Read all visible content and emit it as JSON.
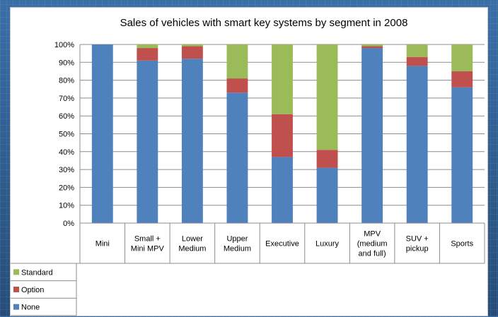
{
  "chart_data": {
    "type": "bar",
    "stacked": true,
    "title": "Sales of vehicles with smart key systems by segment in 2008",
    "categories": [
      [
        "Mini"
      ],
      [
        "Small +",
        "Mini MPV"
      ],
      [
        "Lower",
        "Medium"
      ],
      [
        "Upper",
        "Medium"
      ],
      [
        "Executive"
      ],
      [
        "Luxury"
      ],
      [
        "MPV",
        "(medium",
        "and full)"
      ],
      [
        "SUV +",
        "pickup"
      ],
      [
        "Sports"
      ]
    ],
    "series": [
      {
        "name": "None",
        "color": "#4f81bd",
        "values": [
          100,
          91,
          92,
          73,
          37,
          31,
          98,
          88,
          76
        ]
      },
      {
        "name": "Option",
        "color": "#c0504d",
        "values": [
          0,
          7,
          7,
          8,
          24,
          10,
          1,
          5,
          9
        ]
      },
      {
        "name": "Standard",
        "color": "#9bbb59",
        "values": [
          0,
          2,
          1,
          19,
          39,
          59,
          1,
          7,
          15
        ]
      }
    ],
    "legend_order": [
      "Standard",
      "Option",
      "None"
    ],
    "ylim": [
      0,
      100
    ],
    "yticks": [
      "0%",
      "10%",
      "20%",
      "30%",
      "40%",
      "50%",
      "60%",
      "70%",
      "80%",
      "90%",
      "100%"
    ],
    "grid": true,
    "legend_placement": "data-table-left"
  }
}
